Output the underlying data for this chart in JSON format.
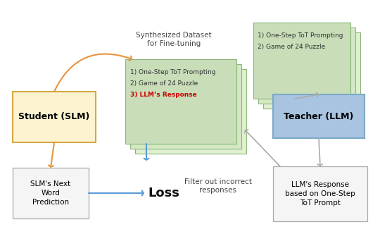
{
  "background_color": "#ffffff",
  "orange_color": "#e8943a",
  "blue_color": "#5b9bd5",
  "gray_color": "#aaaaaa",
  "red_color": "#cc0000",
  "green_face_front": "#c8ddb8",
  "green_face_mid": "#d5e8c4",
  "green_face_back": "#e0f0d0",
  "green_edge": "#8ab878",
  "student_face": "#fdf3d0",
  "student_edge": "#d4a843",
  "teacher_face": "#a8c4e0",
  "teacher_edge": "#7aaac8",
  "box_face": "#f5f5f5",
  "box_edge": "#aaaaaa",
  "dataset_text_1": "1) One-Step ToT Prompting",
  "dataset_text_2": "2) Game of 24 Puzzle",
  "dataset_text_3": "3) LLM’s Response",
  "prompt_text_1": "1) One-Step ToT Prompting",
  "prompt_text_2": "2) Game of 24 Puzzle"
}
